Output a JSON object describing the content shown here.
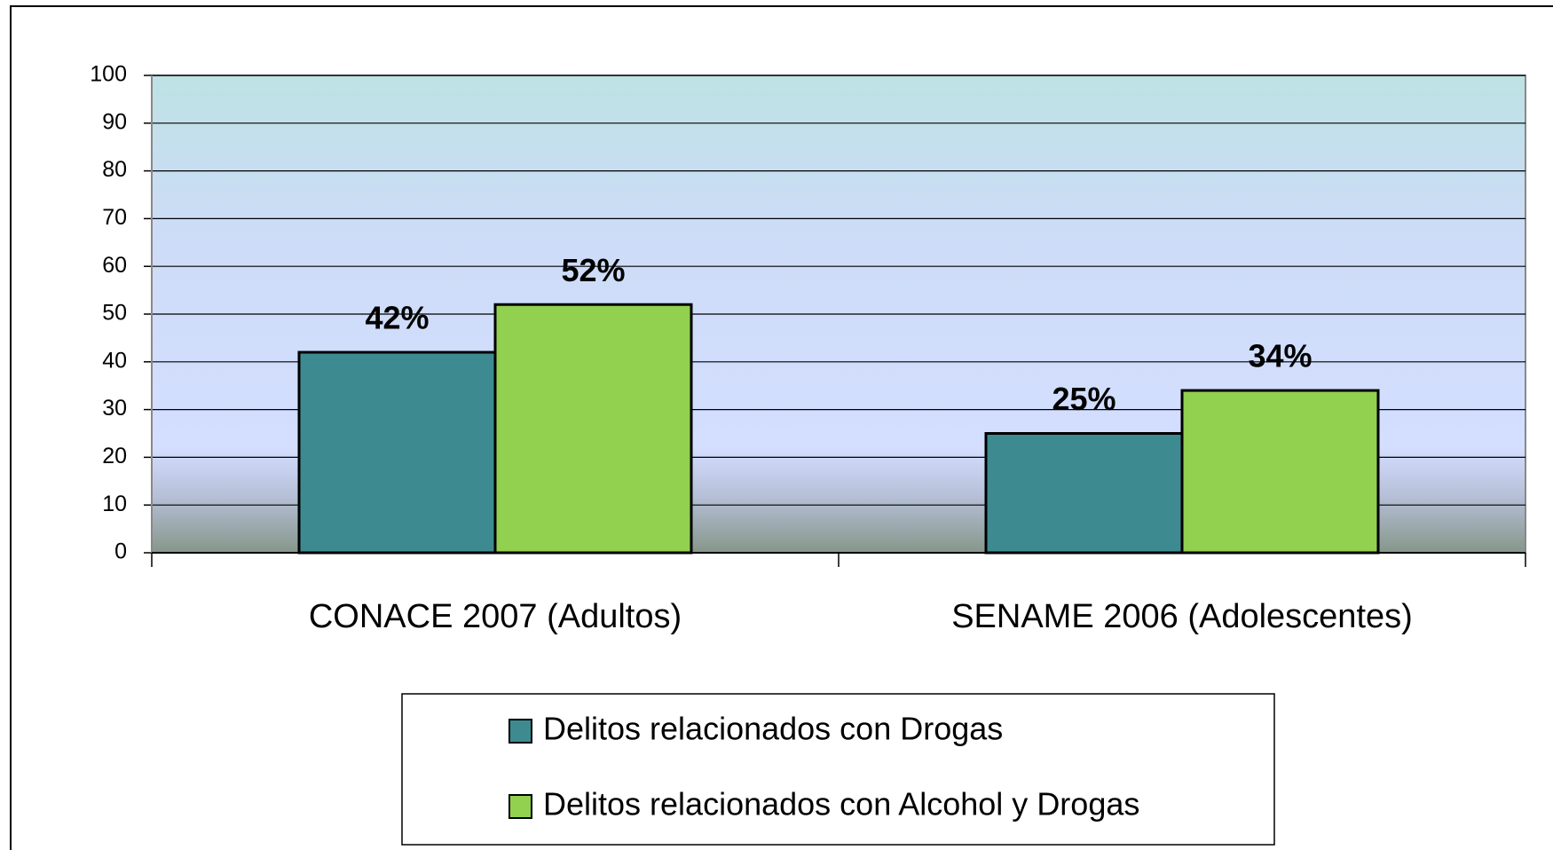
{
  "chart_data": {
    "type": "bar",
    "categories": [
      "CONACE 2007 (Adultos)",
      "SENAME 2006 (Adolescentes)"
    ],
    "series": [
      {
        "name": "Delitos relacionados con Drogas",
        "color": "#3d8b91",
        "values": [
          42,
          25
        ],
        "value_labels": [
          "42%",
          "25%"
        ]
      },
      {
        "name": "Delitos relacionados con Alcohol y Drogas",
        "color": "#92d050",
        "values": [
          52,
          34
        ],
        "value_labels": [
          "52%",
          "34%"
        ]
      }
    ],
    "ylim": [
      0,
      100
    ],
    "yticks": [
      0,
      10,
      20,
      30,
      40,
      50,
      60,
      70,
      80,
      90,
      100
    ],
    "grid": true,
    "legend": "bottom"
  }
}
